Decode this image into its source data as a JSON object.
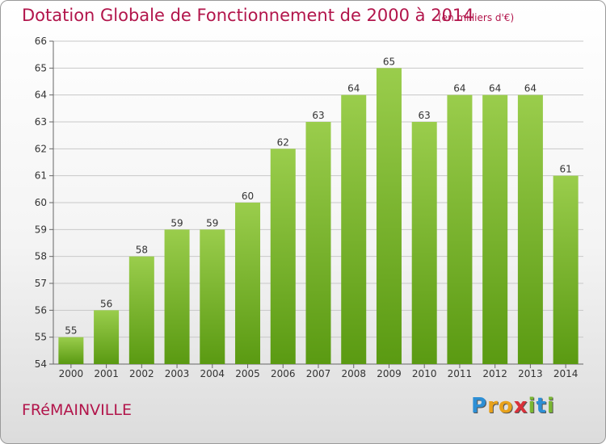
{
  "header": {
    "title": "Dotation Globale de Fonctionnement de 2000 à 2014",
    "unit": "(en milliers d'€)"
  },
  "footer": {
    "commune": "FRéMAINVILLE",
    "logo_letters": [
      "P",
      "r",
      "o",
      "x",
      "i",
      "t",
      "i"
    ],
    "logo_colors": [
      "#2d8fd5",
      "#e8a21b",
      "#e8a21b",
      "#d9303a",
      "#7ab733",
      "#2d8fd5",
      "#7ab733"
    ]
  },
  "colors": {
    "bar_top": "#9acd4c",
    "bar_bottom": "#5a9a12",
    "title": "#b2154b",
    "grid": "#c8c8c8"
  },
  "chart_data": {
    "type": "bar",
    "title": "Dotation Globale de Fonctionnement de 2000 à 2014",
    "subtitle": "(en milliers d'€)",
    "categories": [
      "2000",
      "2001",
      "2002",
      "2003",
      "2004",
      "2005",
      "2006",
      "2007",
      "2008",
      "2009",
      "2010",
      "2011",
      "2012",
      "2013",
      "2014"
    ],
    "values": [
      55,
      56,
      58,
      59,
      59,
      60,
      62,
      63,
      64,
      65,
      63,
      64,
      64,
      64,
      61
    ],
    "ylim": [
      54,
      66
    ],
    "yticks": [
      54,
      55,
      56,
      57,
      58,
      59,
      60,
      61,
      62,
      63,
      64,
      65,
      66
    ],
    "xlabel": "",
    "ylabel": "",
    "grid": true
  }
}
